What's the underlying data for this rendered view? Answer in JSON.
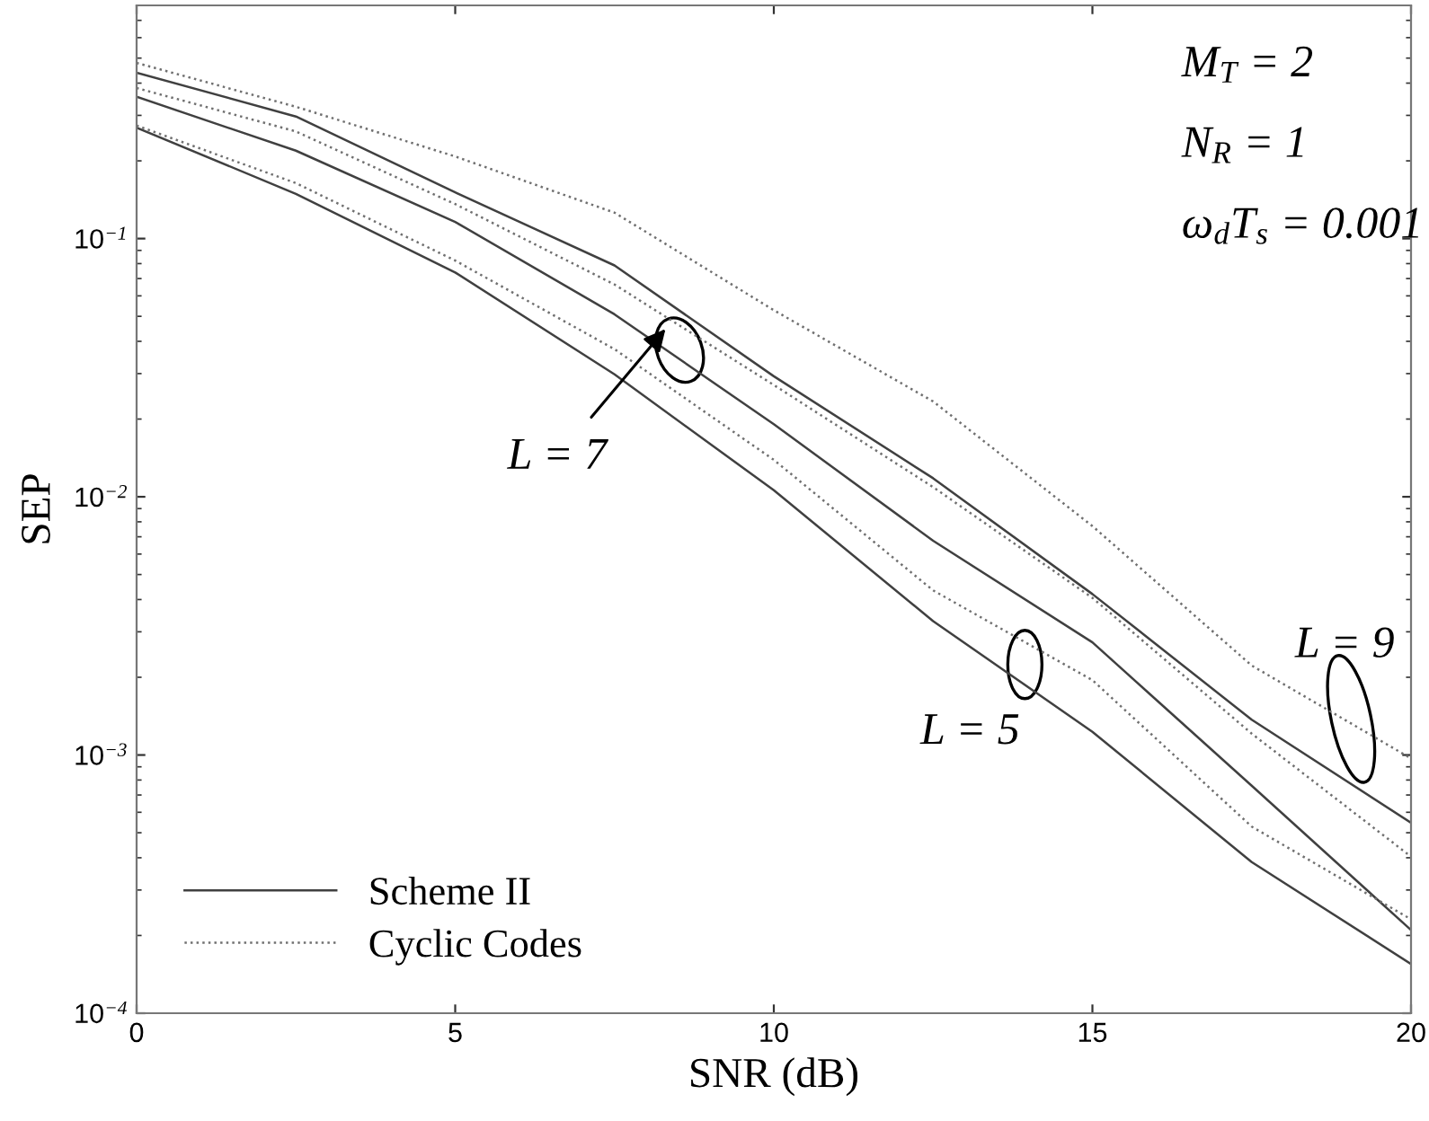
{
  "chart_data": {
    "type": "line",
    "xlabel": "SNR (dB)",
    "ylabel": "SEP",
    "log": "y",
    "grid": false,
    "legend": "bottom left",
    "marker": "none",
    "x": [
      0,
      2.5,
      5,
      7.5,
      10,
      12.5,
      15,
      17.5,
      20
    ],
    "xlim": [
      0,
      20
    ],
    "xticks": [
      0,
      5,
      10,
      15,
      20
    ],
    "ylim": [
      0.0001,
      0.8
    ],
    "yticks": [
      {
        "value": 0.0001,
        "label": "10$^{−4}$"
      },
      {
        "value": 0.001,
        "label": "10$^{−3}$"
      },
      {
        "value": 0.01,
        "label": "10$^{−2}$"
      },
      {
        "value": 0.1,
        "label": "10$^{−1}$"
      }
    ],
    "series": [
      {
        "name": "Scheme II",
        "color": "#404040",
        "line_style": "solid",
        "values": [
          0.439,
          0.297,
          0.151,
          0.0787,
          0.0293,
          0.0118,
          0.0042,
          0.00137,
          0.000546
        ]
      },
      {
        "name": "Cyclic Codes",
        "color": "#707070",
        "line_style": "dotted",
        "values": [
          0.479,
          0.324,
          0.208,
          0.126,
          0.0528,
          0.0234,
          0.0077,
          0.00222,
          0.00097
        ]
      },
      {
        "color": "#707070",
        "line_style": "dotted",
        "values": [
          0.383,
          0.26,
          0.136,
          0.0664,
          0.0271,
          0.0109,
          0.00406,
          0.00121,
          0.000404
        ]
      },
      {
        "color": "#404040",
        "line_style": "solid",
        "values": [
          0.354,
          0.219,
          0.116,
          0.0509,
          0.0191,
          0.00676,
          0.00273,
          0.00076,
          0.00021
        ]
      },
      {
        "color": "#707070",
        "line_style": "dotted",
        "values": [
          0.274,
          0.164,
          0.0822,
          0.0373,
          0.0139,
          0.00434,
          0.00195,
          0.000528,
          0.000231
        ]
      },
      {
        "color": "#404040",
        "line_style": "solid",
        "values": [
          0.269,
          0.149,
          0.0739,
          0.0298,
          0.0106,
          0.0033,
          0.00123,
          0.000385,
          0.000155
        ]
      }
    ],
    "annotations": [
      "M$_{T}$ = 2",
      "N$_{R}$ = 1",
      "ω$_{d}$T$_{s}$ = 0.001",
      "L = 7",
      "L = 5",
      "L = 9"
    ]
  }
}
